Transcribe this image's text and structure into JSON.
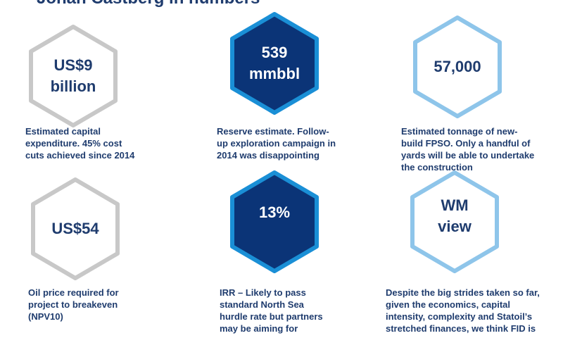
{
  "title": "Johan Castberg in numbers",
  "colors": {
    "navy": "#0b3477",
    "blue": "#1a8fd6",
    "light_blue": "#8ec5ea",
    "grey": "#c8c8c8",
    "text": "#1f3c6e"
  },
  "tiles": [
    {
      "value_lines": [
        "US$9",
        "billion"
      ],
      "description_lines": [
        "Estimated capital",
        "expenditure. 45% cost",
        "cuts achieved since 2014"
      ]
    },
    {
      "value_lines": [
        "539",
        "mmbbl"
      ],
      "description_lines": [
        "Reserve estimate. Follow-",
        "up exploration campaign in",
        "2014 was disappointing"
      ]
    },
    {
      "value_lines": [
        "57,000"
      ],
      "description_lines": [
        "Estimated tonnage of new-",
        "build FPSO. Only a handful of",
        "yards will be able to undertake",
        "the construction"
      ]
    },
    {
      "value_lines": [
        "US$54"
      ],
      "description_lines": [
        "Oil price required for",
        "project to breakeven",
        "(NPV10)"
      ]
    },
    {
      "value_lines": [
        "13%"
      ],
      "description_lines": [
        "IRR – Likely to pass",
        "standard North Sea",
        "hurdle rate but partners",
        "may be aiming for"
      ]
    },
    {
      "value_lines": [
        "WM",
        "view"
      ],
      "description_lines": [
        "Despite the big strides taken so far,",
        "given the economics, capital",
        "intensity, complexity and Statoil’s",
        "stretched finances, we think FID is"
      ]
    }
  ]
}
